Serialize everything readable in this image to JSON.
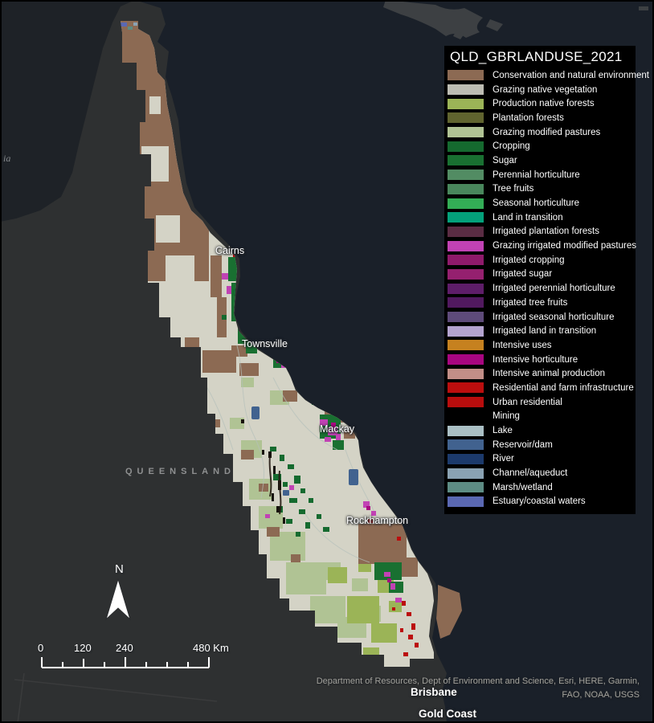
{
  "legend": {
    "title": "QLD_GBRLANDUSE_2021",
    "items": [
      {
        "label": "Conservation and natural environment",
        "color": "#8C6A53"
      },
      {
        "label": "Grazing native vegetation",
        "color": "#BDBDB3"
      },
      {
        "label": "Production native forests",
        "color": "#9BB457"
      },
      {
        "label": "Plantation forests",
        "color": "#60642F"
      },
      {
        "label": "Grazing modified pastures",
        "color": "#B0C394"
      },
      {
        "label": "Cropping",
        "color": "#156A2F"
      },
      {
        "label": "Sugar",
        "color": "#197031"
      },
      {
        "label": "Perennial horticulture",
        "color": "#528C63"
      },
      {
        "label": "Tree fruits",
        "color": "#49875C"
      },
      {
        "label": "Seasonal horticulture",
        "color": "#33AD56"
      },
      {
        "label": "Land in transition",
        "color": "#04A17B"
      },
      {
        "label": "Irrigated plantation forests",
        "color": "#5A2C43"
      },
      {
        "label": "Grazing irrigated modified pastures",
        "color": "#C142B4"
      },
      {
        "label": "Irrigated cropping",
        "color": "#8F1A6B"
      },
      {
        "label": "Irrigated sugar",
        "color": "#95206F"
      },
      {
        "label": "Irrigated perennial horticulture",
        "color": "#5E1D69"
      },
      {
        "label": "Irrigated tree fruits",
        "color": "#51195F"
      },
      {
        "label": "Irrigated seasonal horticulture",
        "color": "#5E4B7A"
      },
      {
        "label": "Irrigated land in transition",
        "color": "#B4A3CF"
      },
      {
        "label": "Intensive uses",
        "color": "#C6811F"
      },
      {
        "label": "Intensive horticulture",
        "color": "#A80680"
      },
      {
        "label": "Intensive animal production",
        "color": "#C28E87"
      },
      {
        "label": "Residential and farm infrastructure",
        "color": "#BB0E0E"
      },
      {
        "label": "Urban residential",
        "color": "#B80D0D"
      },
      {
        "label": "Mining",
        "color": "#000000"
      },
      {
        "label": "Lake",
        "color": "#AABFC4"
      },
      {
        "label": "Reservoir/dam",
        "color": "#41628F"
      },
      {
        "label": "River",
        "color": "#1C3A6C"
      },
      {
        "label": "Channel/aqueduct",
        "color": "#8AA2B3"
      },
      {
        "label": "Marsh/wetland",
        "color": "#5D8C84"
      },
      {
        "label": "Estuary/coastal waters",
        "color": "#5A68B3"
      }
    ]
  },
  "map": {
    "region_label": "QUEENSLAND",
    "edge_label_fragment": "ia",
    "cities": [
      "Cairns",
      "Townsville",
      "Mackay",
      "Rockhampton",
      "Brisbane",
      "Gold Coast"
    ]
  },
  "north_arrow": {
    "label": "N"
  },
  "scale_bar": {
    "labels": [
      "0",
      "120",
      "240",
      "480 Km"
    ]
  },
  "attribution": {
    "line1": "Department of Resources, Dept of Environment and Science, Esri, HERE, Garmin,",
    "line2": "FAO, NOAA, USGS"
  },
  "colors": {
    "ocean": "#1A2029",
    "gulf_water": "#1E2227",
    "land_background": "#2E3031",
    "neighbor_landmass": "#3D4043",
    "catchment_base": "#D4D3C6",
    "legend_background": "#000000",
    "label_text": "#FFFFFF"
  }
}
